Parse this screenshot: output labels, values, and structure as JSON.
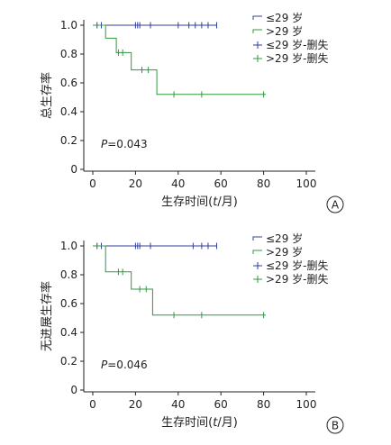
{
  "colors": {
    "group_le29": "#2f3f9c",
    "group_gt29": "#2f9a3f",
    "axis": "#222222"
  },
  "chart_data": [
    {
      "type": "line",
      "panel_label": "A",
      "ylabel": "总生存率",
      "xlabel_parts": [
        "生存时间(",
        "t",
        "/月)"
      ],
      "xlim": [
        0,
        100
      ],
      "ylim": [
        0,
        1.0
      ],
      "x_ticks": [
        "0",
        "20",
        "40",
        "60",
        "80",
        "100"
      ],
      "y_ticks": [
        "0",
        "0.2",
        "0.4",
        "0.6",
        "0.8",
        "1.0"
      ],
      "p_label": "P",
      "p_value": "=0.043",
      "legend": [
        "≤29 岁",
        ">29 岁",
        "≤29 岁-删失",
        ">29 岁-删失"
      ],
      "series": [
        {
          "name": "≤29 岁",
          "steps": [
            [
              0,
              1.0
            ],
            [
              58,
              1.0
            ]
          ],
          "censored": [
            2,
            4,
            20,
            21,
            22,
            27,
            40,
            45,
            48,
            51,
            54,
            58
          ]
        },
        {
          "name": ">29 岁",
          "steps": [
            [
              0,
              1.0
            ],
            [
              6,
              1.0
            ],
            [
              6,
              0.91
            ],
            [
              11,
              0.91
            ],
            [
              11,
              0.81
            ],
            [
              18,
              0.81
            ],
            [
              18,
              0.69
            ],
            [
              30,
              0.69
            ],
            [
              30,
              0.52
            ],
            [
              81,
              0.52
            ]
          ],
          "censored": [
            12,
            14,
            23,
            26,
            38,
            51,
            80
          ]
        }
      ]
    },
    {
      "type": "line",
      "panel_label": "B",
      "ylabel": "无进展生存率",
      "xlabel_parts": [
        "生存时间(",
        "t",
        "/月)"
      ],
      "xlim": [
        0,
        100
      ],
      "ylim": [
        0,
        1.0
      ],
      "x_ticks": [
        "0",
        "20",
        "40",
        "60",
        "80",
        "100"
      ],
      "y_ticks": [
        "0",
        "0.2",
        "0.4",
        "0.6",
        "0.8",
        "1.0"
      ],
      "p_label": "P",
      "p_value": "=0.046",
      "legend": [
        "≤29 岁",
        ">29 岁",
        "≤29 岁-删失",
        ">29 岁-删失"
      ],
      "series": [
        {
          "name": "≤29 岁",
          "steps": [
            [
              0,
              1.0
            ],
            [
              58,
              1.0
            ]
          ],
          "censored": [
            2,
            4,
            20,
            21,
            22,
            27,
            47,
            51,
            54,
            58
          ]
        },
        {
          "name": ">29 岁",
          "steps": [
            [
              0,
              1.0
            ],
            [
              6,
              1.0
            ],
            [
              6,
              0.82
            ],
            [
              18,
              0.82
            ],
            [
              18,
              0.7
            ],
            [
              28,
              0.7
            ],
            [
              28,
              0.52
            ],
            [
              81,
              0.52
            ]
          ],
          "censored": [
            12,
            14,
            22,
            25,
            38,
            51,
            80
          ]
        }
      ]
    }
  ]
}
